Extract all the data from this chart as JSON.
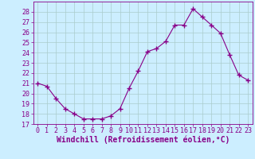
{
  "x": [
    0,
    1,
    2,
    3,
    4,
    5,
    6,
    7,
    8,
    9,
    10,
    11,
    12,
    13,
    14,
    15,
    16,
    17,
    18,
    19,
    20,
    21,
    22,
    23
  ],
  "y": [
    21,
    20.7,
    19.5,
    18.5,
    18,
    17.5,
    17.5,
    17.5,
    17.8,
    18.5,
    20.5,
    22.2,
    24.1,
    24.4,
    25.1,
    26.7,
    26.7,
    28.3,
    27.5,
    26.7,
    25.9,
    23.8,
    21.8,
    21.3
  ],
  "line_color": "#880088",
  "marker": "+",
  "marker_size": 4,
  "background_color": "#cceeff",
  "grid_color": "#aacccc",
  "xlabel": "Windchill (Refroidissement éolien,°C)",
  "ylim": [
    17,
    29
  ],
  "xlim": [
    -0.5,
    23.5
  ],
  "yticks": [
    17,
    18,
    19,
    20,
    21,
    22,
    23,
    24,
    25,
    26,
    27,
    28
  ],
  "xticks": [
    0,
    1,
    2,
    3,
    4,
    5,
    6,
    7,
    8,
    9,
    10,
    11,
    12,
    13,
    14,
    15,
    16,
    17,
    18,
    19,
    20,
    21,
    22,
    23
  ],
  "tick_color": "#880088",
  "label_color": "#880088",
  "tick_fontsize": 6,
  "xlabel_fontsize": 7
}
